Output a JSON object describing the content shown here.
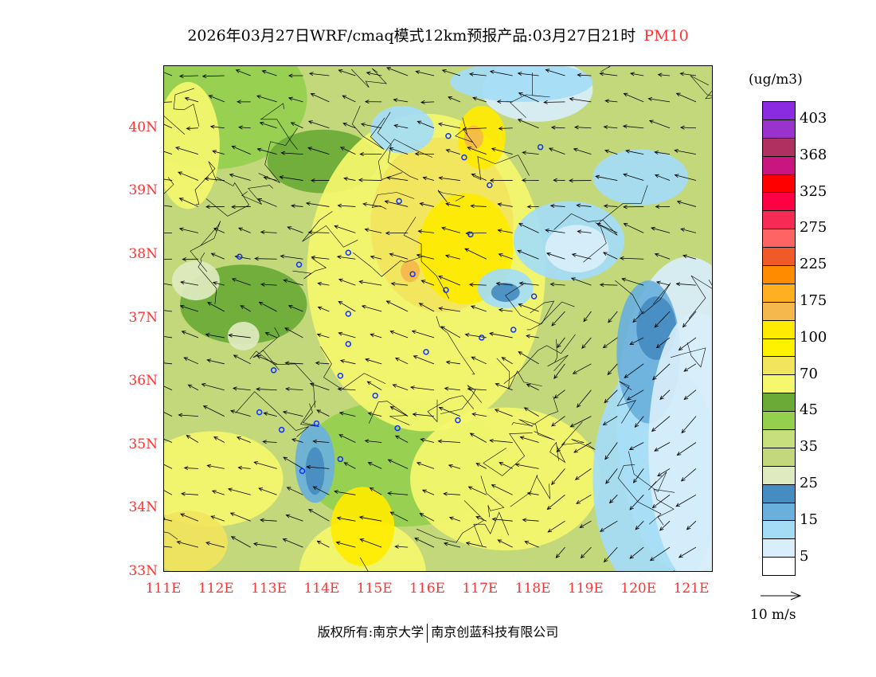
{
  "title": {
    "main": "2026年03月27日WRF/cmaq模式12km预报产品:03月27日21时",
    "pollutant": "PM10"
  },
  "axes": {
    "lat_labels": [
      "40N",
      "39N",
      "38N",
      "37N",
      "36N",
      "35N",
      "34N",
      "33N"
    ],
    "lat_values": [
      40,
      39,
      38,
      37,
      36,
      35,
      34,
      33
    ],
    "lon_labels": [
      "111E",
      "112E",
      "113E",
      "114E",
      "115E",
      "116E",
      "117E",
      "118E",
      "119E",
      "120E",
      "121E"
    ],
    "lon_values": [
      111,
      112,
      113,
      114,
      115,
      116,
      117,
      118,
      119,
      120,
      121
    ]
  },
  "legend": {
    "unit": "(ug/m3)",
    "labels": [
      "403",
      "368",
      "325",
      "275",
      "225",
      "175",
      "100",
      "70",
      "45",
      "35",
      "25",
      "15",
      "5"
    ],
    "colors": [
      "#8a2be2",
      "#9a32cd",
      "#b0305f",
      "#c8157f",
      "#ff0000",
      "#ff0044",
      "#f72a55",
      "#ff6464",
      "#f05a28",
      "#ff8c00",
      "#ffb020",
      "#f5b84c",
      "#ffea00",
      "#fff200",
      "#f2e45c",
      "#f5f76c",
      "#6aaa36",
      "#95cf4e",
      "#c6e07e",
      "#c2d87a",
      "#e0eac0",
      "#468cc0",
      "#6ab0dc",
      "#a4dcf6",
      "#d8eefa",
      "#ffffff"
    ]
  },
  "wind_scale": {
    "label": "10 m/s"
  },
  "footer": {
    "left": "版权所有:南京大学",
    "right": "南京创蓝科技有限公司"
  }
}
